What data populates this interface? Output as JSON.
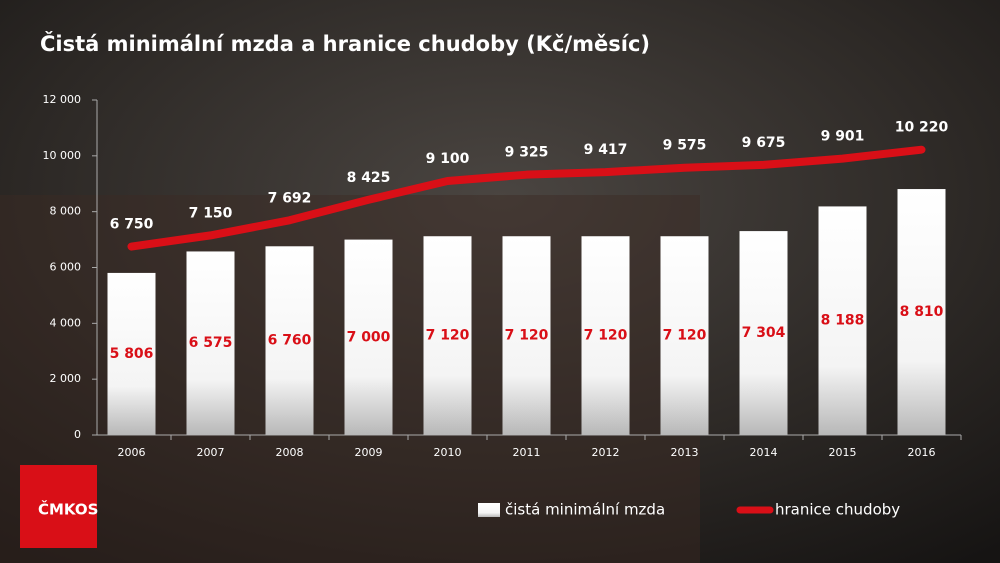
{
  "chart_data": {
    "type": "combo",
    "title": "Čistá minimální mzda a hranice chudoby (Kč/měsíc)",
    "logo": "ČMKOS",
    "categories": [
      "2006",
      "2007",
      "2008",
      "2009",
      "2010",
      "2011",
      "2012",
      "2013",
      "2014",
      "2015",
      "2016"
    ],
    "series": [
      {
        "name": "čistá minimální mzda",
        "type": "bar",
        "color": "#ffffff",
        "values": [
          5806,
          6575,
          6760,
          7000,
          7120,
          7120,
          7120,
          7120,
          7304,
          8188,
          8810
        ],
        "value_labels": [
          "5 806",
          "6 575",
          "6 760",
          "7 000",
          "7 120",
          "7 120",
          "7 120",
          "7 120",
          "7 304",
          "8 188",
          "8 810"
        ]
      },
      {
        "name": "hranice chudoby",
        "type": "line",
        "color": "#d90f17",
        "values": [
          6750,
          7150,
          7692,
          8425,
          9100,
          9325,
          9417,
          9575,
          9675,
          9901,
          10220
        ],
        "value_labels": [
          "6 750",
          "7 150",
          "7 692",
          "8 425",
          "9 100",
          "9 325",
          "9 417",
          "9 575",
          "9 675",
          "9 901",
          "10 220"
        ]
      }
    ],
    "ylim": [
      0,
      12000
    ],
    "yticks": [
      0,
      {
        "value": 2000,
        "label": "2 000"
      },
      {
        "value": 4000,
        "label": "4 000"
      },
      {
        "value": 6000,
        "label": "6 000"
      },
      {
        "value": 8000,
        "label": "8 000"
      },
      {
        "value": 10000,
        "label": "10 000"
      },
      {
        "value": 12000,
        "label": "12 000"
      }
    ]
  }
}
